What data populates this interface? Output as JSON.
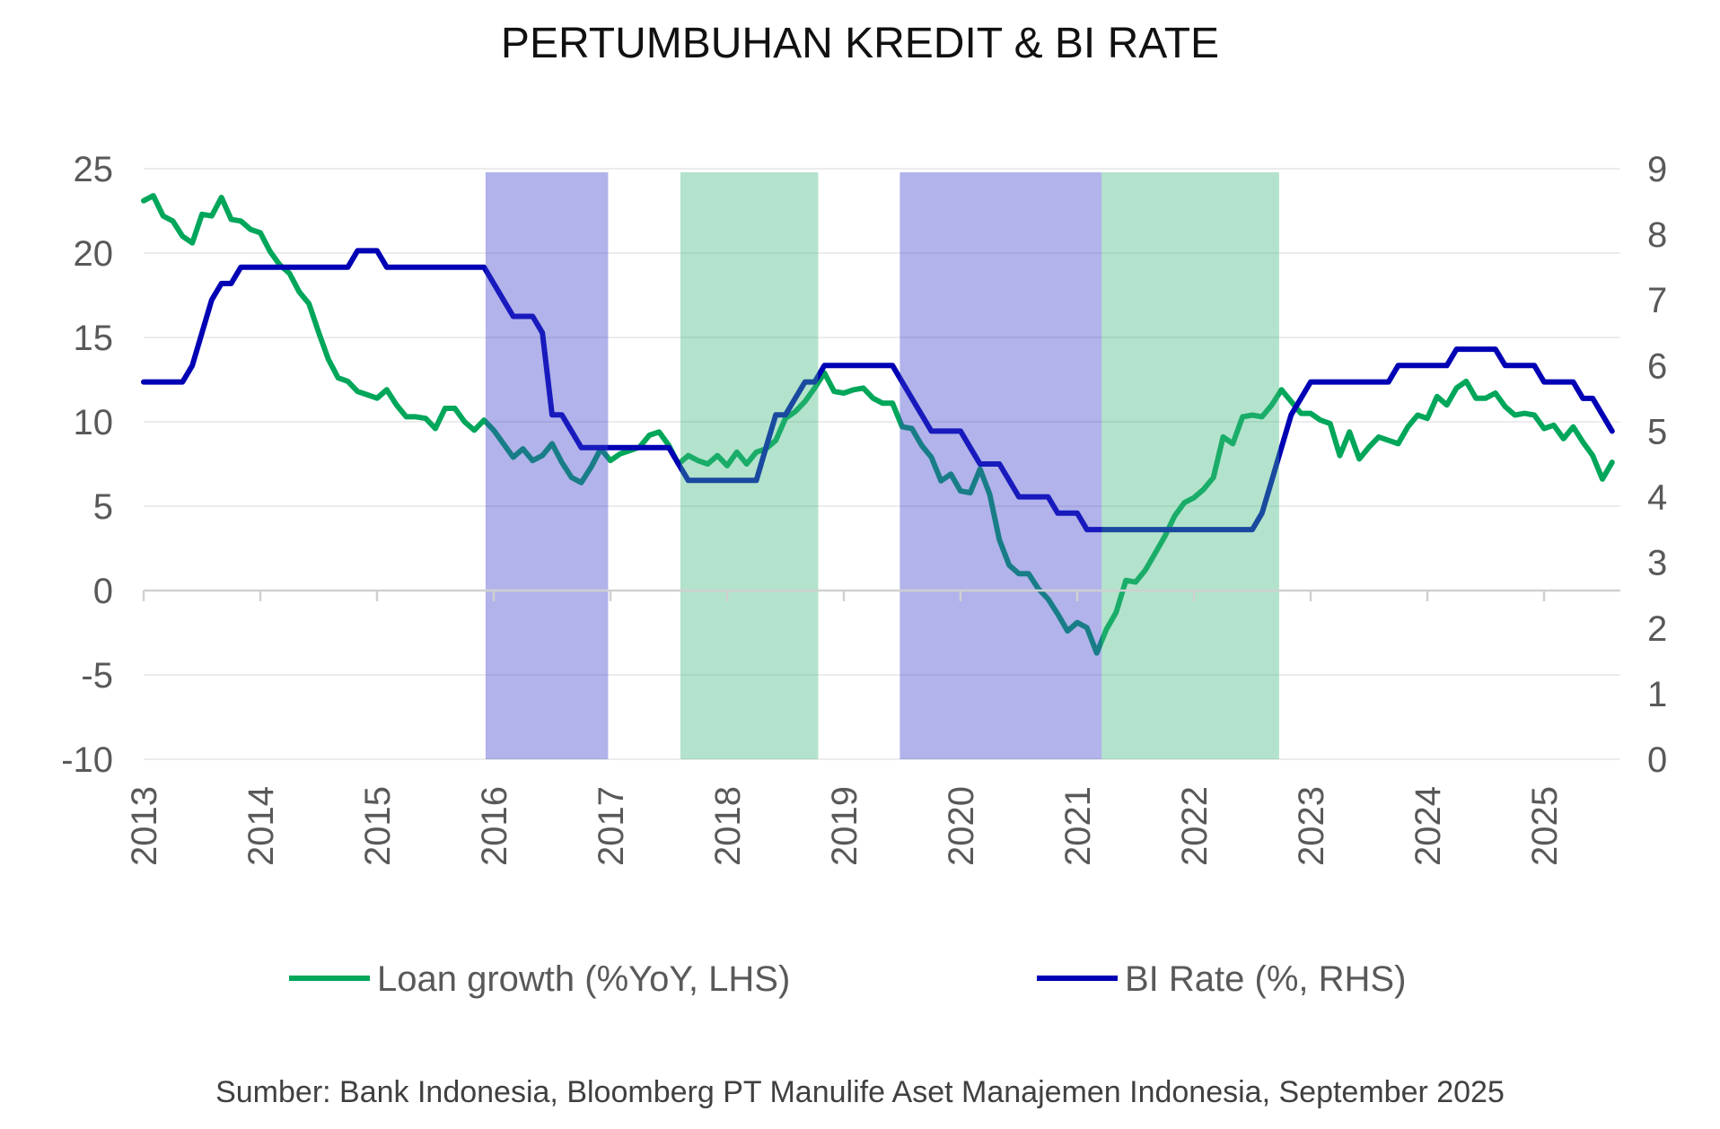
{
  "chart_data": {
    "type": "line",
    "title": "PERTUMBUHAN KREDIT & BI RATE",
    "x_start": "2013-01",
    "x_frequency": "monthly",
    "x_ticks": [
      "2013",
      "2014",
      "2015",
      "2016",
      "2017",
      "2018",
      "2019",
      "2020",
      "2021",
      "2022",
      "2023",
      "2024",
      "2025"
    ],
    "y_left": {
      "range": [
        -10,
        25
      ],
      "ticks": [
        "25",
        "20",
        "15",
        "10",
        "5",
        "0",
        "-5",
        "-10"
      ]
    },
    "y_right": {
      "range": [
        0,
        9
      ],
      "ticks": [
        "9",
        "8",
        "7",
        "6",
        "5",
        "4",
        "3",
        "2",
        "1",
        "0"
      ]
    },
    "grid": true,
    "legend_placement": "bottom",
    "shaded_periods": [
      {
        "start": 2015.93,
        "end": 2016.98,
        "color": "#3c41ca"
      },
      {
        "start": 2017.6,
        "end": 2018.78,
        "color": "#41b980"
      },
      {
        "start": 2019.48,
        "end": 2021.21,
        "color": "#3c41ca"
      },
      {
        "start": 2021.21,
        "end": 2022.73,
        "color": "#41b980"
      }
    ],
    "series": [
      {
        "name": "Loan growth (%YoY, LHS)",
        "axis": "left",
        "color": "#00a65a",
        "values": [
          23.1,
          23.4,
          22.2,
          21.9,
          21.0,
          20.6,
          22.3,
          22.2,
          23.3,
          22.0,
          21.9,
          21.4,
          21.2,
          20.1,
          19.3,
          18.8,
          17.7,
          17.0,
          15.3,
          13.7,
          12.6,
          12.4,
          11.8,
          11.6,
          11.4,
          11.9,
          11.0,
          10.3,
          10.3,
          10.2,
          9.6,
          10.8,
          10.8,
          10.0,
          9.5,
          10.1,
          9.5,
          8.7,
          7.9,
          8.4,
          7.7,
          8.0,
          8.7,
          7.6,
          6.7,
          6.4,
          7.3,
          8.4,
          7.7,
          8.1,
          8.3,
          8.5,
          9.2,
          9.4,
          8.6,
          7.5,
          8.0,
          7.7,
          7.5,
          8.0,
          7.4,
          8.2,
          7.5,
          8.2,
          8.4,
          8.9,
          10.2,
          10.6,
          11.2,
          12.0,
          12.9,
          11.8,
          11.7,
          11.9,
          12.0,
          11.4,
          11.1,
          11.1,
          9.7,
          9.6,
          8.6,
          7.9,
          6.5,
          6.9,
          5.9,
          5.8,
          7.2,
          5.7,
          3.0,
          1.5,
          1.0,
          1.0,
          0.1,
          -0.5,
          -1.4,
          -2.4,
          -1.9,
          -2.2,
          -3.7,
          -2.3,
          -1.3,
          0.6,
          0.5,
          1.2,
          2.2,
          3.2,
          4.4,
          5.2,
          5.5,
          6.0,
          6.7,
          9.1,
          8.7,
          10.3,
          10.4,
          10.3,
          11.0,
          11.9,
          11.2,
          10.5,
          10.5,
          10.1,
          9.9,
          8.0,
          9.4,
          7.8,
          8.5,
          9.1,
          8.9,
          8.7,
          9.7,
          10.4,
          10.2,
          11.5,
          11.0,
          12.0,
          12.4,
          11.4,
          11.4,
          11.7,
          10.9,
          10.4,
          10.5,
          10.4,
          9.6,
          9.8,
          9.0,
          9.7,
          8.8,
          8.0,
          6.6,
          7.6
        ]
      },
      {
        "name": "BI Rate (%, RHS)",
        "axis": "right",
        "color": "#0000b4",
        "values": [
          5.75,
          5.75,
          5.75,
          5.75,
          5.75,
          6.0,
          6.5,
          7.0,
          7.25,
          7.25,
          7.5,
          7.5,
          7.5,
          7.5,
          7.5,
          7.5,
          7.5,
          7.5,
          7.5,
          7.5,
          7.5,
          7.5,
          7.75,
          7.75,
          7.75,
          7.5,
          7.5,
          7.5,
          7.5,
          7.5,
          7.5,
          7.5,
          7.5,
          7.5,
          7.5,
          7.5,
          7.25,
          7.0,
          6.75,
          6.75,
          6.75,
          6.5,
          5.25,
          5.25,
          5.0,
          4.75,
          4.75,
          4.75,
          4.75,
          4.75,
          4.75,
          4.75,
          4.75,
          4.75,
          4.75,
          4.5,
          4.25,
          4.25,
          4.25,
          4.25,
          4.25,
          4.25,
          4.25,
          4.25,
          4.75,
          5.25,
          5.25,
          5.5,
          5.75,
          5.75,
          6.0,
          6.0,
          6.0,
          6.0,
          6.0,
          6.0,
          6.0,
          6.0,
          5.75,
          5.5,
          5.25,
          5.0,
          5.0,
          5.0,
          5.0,
          4.75,
          4.5,
          4.5,
          4.5,
          4.25,
          4.0,
          4.0,
          4.0,
          4.0,
          3.75,
          3.75,
          3.75,
          3.5,
          3.5,
          3.5,
          3.5,
          3.5,
          3.5,
          3.5,
          3.5,
          3.5,
          3.5,
          3.5,
          3.5,
          3.5,
          3.5,
          3.5,
          3.5,
          3.5,
          3.5,
          3.75,
          4.25,
          4.75,
          5.25,
          5.5,
          5.75,
          5.75,
          5.75,
          5.75,
          5.75,
          5.75,
          5.75,
          5.75,
          5.75,
          6.0,
          6.0,
          6.0,
          6.0,
          6.0,
          6.0,
          6.25,
          6.25,
          6.25,
          6.25,
          6.25,
          6.0,
          6.0,
          6.0,
          6.0,
          5.75,
          5.75,
          5.75,
          5.75,
          5.5,
          5.5,
          5.25,
          5.0
        ]
      }
    ],
    "source": "Sumber:  Bank Indonesia, Bloomberg PT Manulife Aset Manajemen Indonesia, September 2025"
  }
}
